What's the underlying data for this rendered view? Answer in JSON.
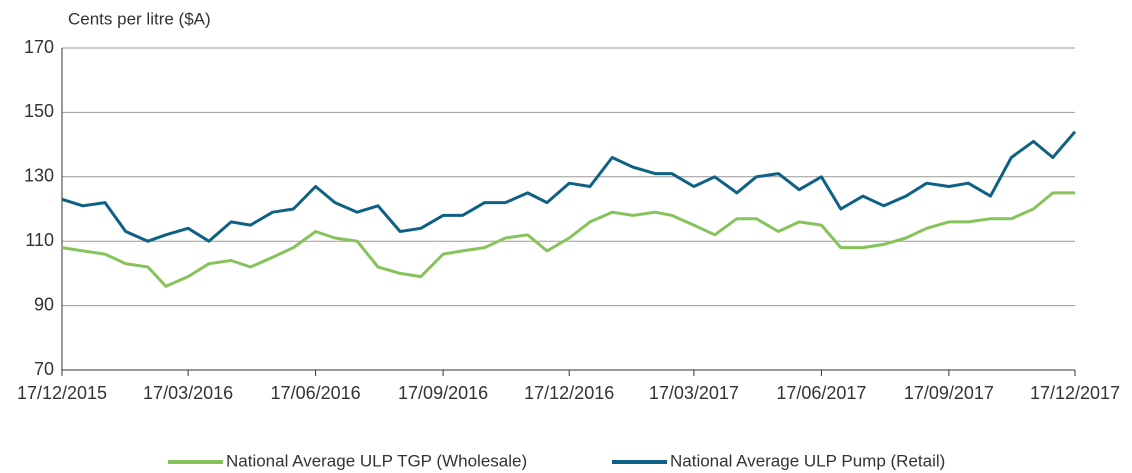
{
  "chart_data": {
    "type": "line",
    "y_axis_label": "Cents per litre ($A)",
    "x": [
      "17/12/2015",
      "01/01/2016",
      "17/01/2016",
      "01/02/2016",
      "17/02/2016",
      "01/03/2016",
      "17/03/2016",
      "01/04/2016",
      "17/04/2016",
      "01/05/2016",
      "17/05/2016",
      "01/06/2016",
      "17/06/2016",
      "01/07/2016",
      "17/07/2016",
      "01/08/2016",
      "17/08/2016",
      "01/09/2016",
      "17/09/2016",
      "01/10/2016",
      "17/10/2016",
      "01/11/2016",
      "17/11/2016",
      "01/12/2016",
      "17/12/2016",
      "01/01/2017",
      "17/01/2017",
      "01/02/2017",
      "17/02/2017",
      "01/03/2017",
      "17/03/2017",
      "01/04/2017",
      "17/04/2017",
      "01/05/2017",
      "17/05/2017",
      "01/06/2017",
      "17/06/2017",
      "01/07/2017",
      "17/07/2017",
      "01/08/2017",
      "17/08/2017",
      "01/09/2017",
      "17/09/2017",
      "01/10/2017",
      "17/10/2017",
      "01/11/2017",
      "17/11/2017",
      "01/12/2017",
      "17/12/2017"
    ],
    "series": [
      {
        "name": "National Average ULP TGP (Wholesale)",
        "color": "#86c35a",
        "values": [
          108,
          107,
          106,
          103,
          102,
          96,
          99,
          103,
          104,
          102,
          105,
          108,
          113,
          111,
          110,
          102,
          100,
          99,
          106,
          107,
          108,
          111,
          112,
          107,
          111,
          116,
          119,
          118,
          119,
          118,
          115,
          112,
          117,
          117,
          113,
          116,
          115,
          108,
          108,
          109,
          111,
          114,
          116,
          116,
          117,
          117,
          120,
          125,
          125
        ]
      },
      {
        "name": "National Average ULP Pump (Retail)",
        "color": "#0e6185",
        "values": [
          123,
          121,
          122,
          113,
          110,
          112,
          114,
          110,
          116,
          115,
          119,
          120,
          127,
          122,
          119,
          121,
          113,
          114,
          118,
          118,
          122,
          122,
          125,
          122,
          128,
          127,
          136,
          133,
          131,
          131,
          127,
          130,
          125,
          130,
          131,
          126,
          130,
          120,
          124,
          121,
          124,
          128,
          127,
          128,
          124,
          136,
          141,
          136,
          144
        ]
      }
    ],
    "xlim": [
      "17/12/2015",
      "17/12/2017"
    ],
    "xticks": [
      "17/12/2015",
      "17/03/2016",
      "17/06/2016",
      "17/09/2016",
      "17/12/2016",
      "17/03/2017",
      "17/06/2017",
      "17/09/2017",
      "17/12/2017"
    ],
    "ylim": [
      70,
      170
    ],
    "yticks": [
      70,
      90,
      110,
      130,
      150,
      170
    ],
    "grid": true,
    "legend": "bottom"
  }
}
